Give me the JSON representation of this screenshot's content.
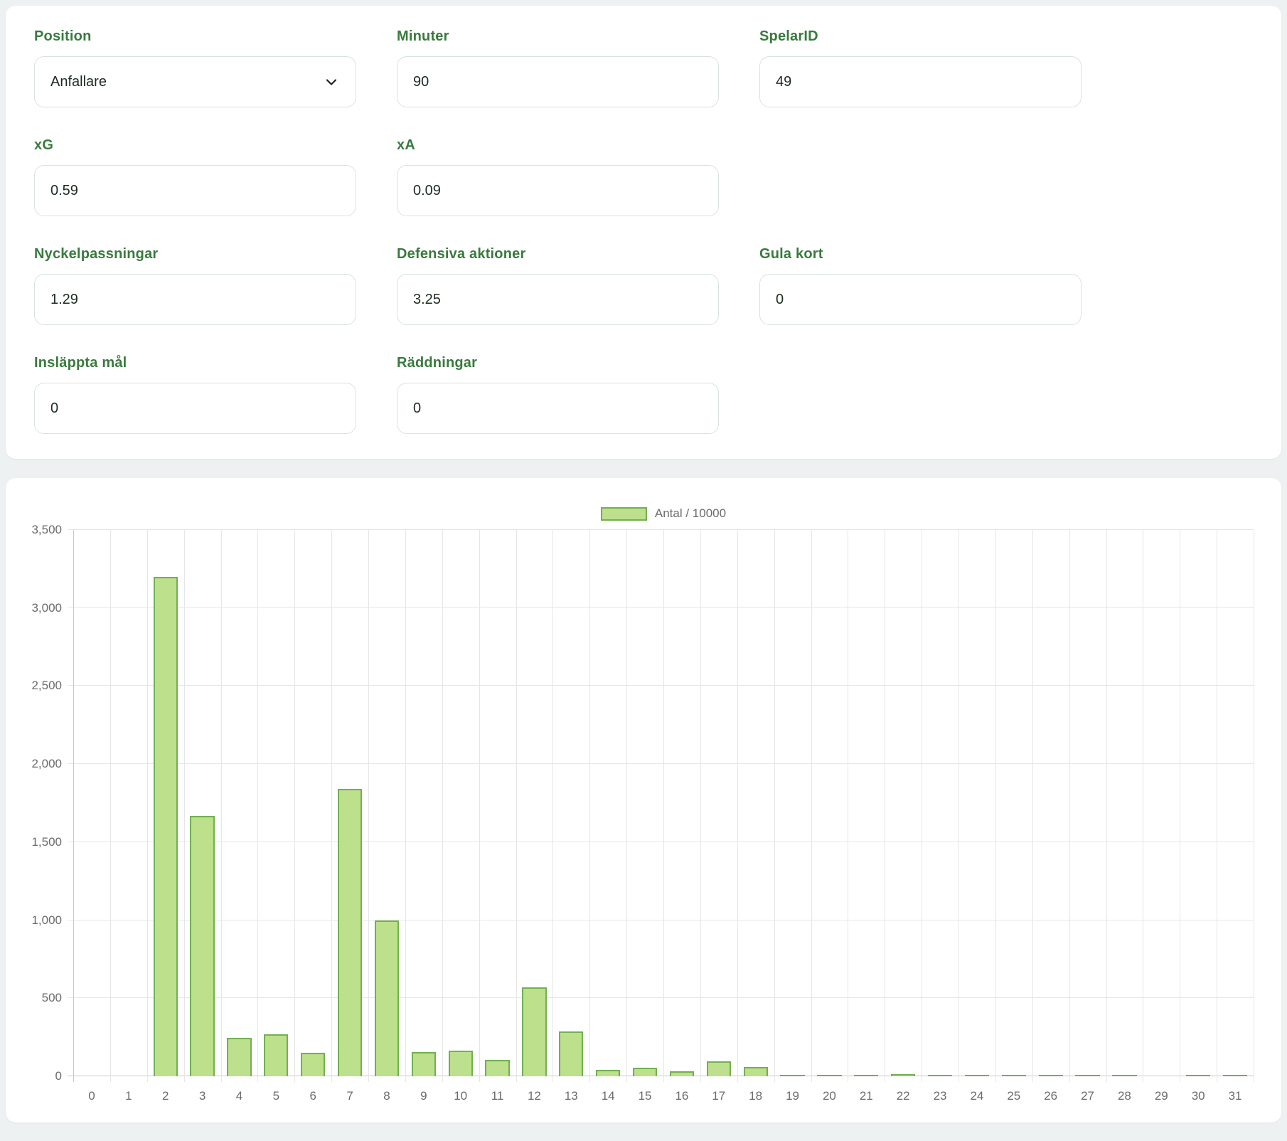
{
  "colors": {
    "accent_green": "#397a3e",
    "page_bg": "#edf1f1",
    "card_bg": "#ffffff",
    "input_border": "#d9e3dc",
    "axis_text": "#6b6b6b",
    "gridline": "#e6e6e6",
    "axis_line": "#c9c9c9"
  },
  "form": {
    "fields": [
      {
        "name": "position",
        "label": "Position",
        "type": "select",
        "value": "Anfallare"
      },
      {
        "name": "minuter",
        "label": "Minuter",
        "type": "input",
        "value": "90"
      },
      {
        "name": "spelar-id",
        "label": "SpelarID",
        "type": "input",
        "value": "49"
      },
      {
        "name": "xg",
        "label": "xG",
        "type": "input",
        "value": "0.59"
      },
      {
        "name": "xa",
        "label": "xA",
        "type": "input",
        "value": "0.09"
      },
      {
        "name": "nyckelpassningar",
        "label": "Nyckelpassningar",
        "type": "input",
        "value": "1.29"
      },
      {
        "name": "defensiva-aktioner",
        "label": "Defensiva aktioner",
        "type": "input",
        "value": "3.25"
      },
      {
        "name": "gula-kort",
        "label": "Gula kort",
        "type": "input",
        "value": "0"
      },
      {
        "name": "inslappta-mal",
        "label": "Insläppta mål",
        "type": "input",
        "value": "0"
      },
      {
        "name": "raddningar",
        "label": "Räddningar",
        "type": "input",
        "value": "0"
      }
    ]
  },
  "chart_data": {
    "type": "bar",
    "title": "",
    "categories": [
      "0",
      "1",
      "2",
      "3",
      "4",
      "5",
      "6",
      "7",
      "8",
      "9",
      "10",
      "11",
      "12",
      "13",
      "14",
      "15",
      "16",
      "17",
      "18",
      "19",
      "20",
      "21",
      "22",
      "23",
      "24",
      "25",
      "26",
      "27",
      "28",
      "29",
      "30",
      "31"
    ],
    "series": [
      {
        "name": "Antal / 10000",
        "values": [
          0,
          0,
          3200,
          1670,
          245,
          270,
          150,
          1840,
          1000,
          155,
          165,
          105,
          570,
          285,
          40,
          55,
          30,
          95,
          60,
          10,
          10,
          2,
          15,
          10,
          3,
          1,
          6,
          4,
          7,
          0,
          1,
          6
        ]
      }
    ],
    "xlabel": "",
    "ylabel": "",
    "ylim": [
      0,
      3500
    ],
    "ytick_step": 500,
    "grid": true,
    "legend_position": "top",
    "bar_fill": "#bde08c",
    "bar_border": "#72b050"
  }
}
